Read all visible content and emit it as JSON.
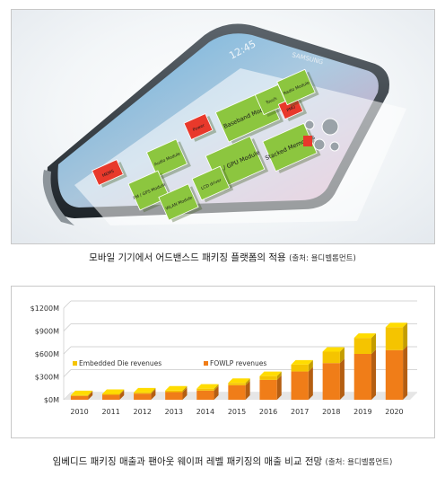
{
  "top_figure": {
    "chip_labels": [
      "Baseband Modem",
      "CPU / GPU Module",
      "Stacked Memories",
      "Audio Module",
      "FM / GPS Module",
      "WLAN Module",
      "LCD driver",
      "Power",
      "Touch",
      "PMU",
      "Radio Module",
      "MEMS"
    ],
    "screen_text": "12:45",
    "brand_text": "SAMSUNG",
    "caption_main": "모바일 기기에서 어드밴스드 패키징 플랫폼의 적용",
    "caption_source": "(출처: 욜디벨롭먼트)"
  },
  "chart_caption": {
    "main": "임베디드 패키징 매출과 팬아웃 웨이퍼 레벨 패키징의 매출 비교 전망",
    "source": "(출처: 욜디벨롭먼트)"
  },
  "colors": {
    "fowlp": "#f07d18",
    "embedded": "#f5c400",
    "green_chip": "#8cc63f",
    "red_chip": "#e8392b",
    "gray_chip": "#9aa2a8"
  },
  "chart_data": {
    "type": "bar",
    "stacked": true,
    "categories": [
      "2010",
      "2011",
      "2012",
      "2013",
      "2014",
      "2015",
      "2016",
      "2017",
      "2018",
      "2019",
      "2020"
    ],
    "series": [
      {
        "name": "FOWLP revenues",
        "values": [
          50,
          65,
          80,
          100,
          120,
          190,
          260,
          370,
          480,
          600,
          650
        ]
      },
      {
        "name": "Embedded Die revenues",
        "values": [
          10,
          12,
          15,
          20,
          25,
          30,
          50,
          90,
          150,
          210,
          300
        ]
      }
    ],
    "yticks": [
      "$0M",
      "$300M",
      "$600M",
      "$900M",
      "$1200M"
    ],
    "ylim": [
      0,
      1200
    ],
    "grid": true,
    "legend": "inside-lower-left"
  }
}
